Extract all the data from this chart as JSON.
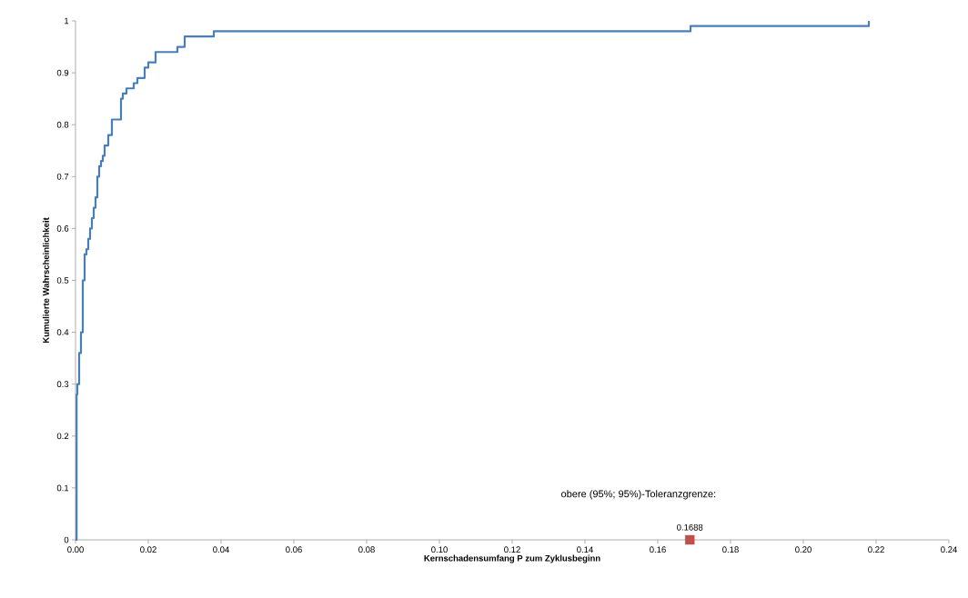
{
  "chart_data": {
    "type": "step",
    "xlabel": "Kernschadensumfang P zum Zyklusbeginn",
    "ylabel": "Kumulierte Wahrscheinlichkeit",
    "xlim": [
      0,
      0.24
    ],
    "ylim": [
      0,
      1
    ],
    "xticks": [
      {
        "value": 0,
        "label": "0.00"
      },
      {
        "value": 0.02,
        "label": "0.02"
      },
      {
        "value": 0.04,
        "label": "0.04"
      },
      {
        "value": 0.06,
        "label": "0.06"
      },
      {
        "value": 0.08,
        "label": "0.08"
      },
      {
        "value": 0.1,
        "label": "0.10"
      },
      {
        "value": 0.12,
        "label": "0.12"
      },
      {
        "value": 0.14,
        "label": "0.14"
      },
      {
        "value": 0.16,
        "label": "0.16"
      },
      {
        "value": 0.18,
        "label": "0.18"
      },
      {
        "value": 0.2,
        "label": "0.20"
      },
      {
        "value": 0.22,
        "label": "0.22"
      },
      {
        "value": 0.24,
        "label": "0.24"
      }
    ],
    "yticks": [
      0,
      0.1,
      0.2,
      0.3,
      0.4,
      0.5,
      0.6,
      0.7,
      0.8,
      0.9,
      1
    ],
    "series": [
      {
        "color": "#4a7ebb",
        "marker": "none",
        "x": [
          0,
          0.0003,
          0.0005,
          0.001,
          0.0015,
          0.002,
          0.0025,
          0.003,
          0.0035,
          0.004,
          0.0045,
          0.005,
          0.0055,
          0.006,
          0.0065,
          0.007,
          0.0075,
          0.008,
          0.009,
          0.01,
          0.0125,
          0.013,
          0.014,
          0.016,
          0.017,
          0.019,
          0.02,
          0.022,
          0.028,
          0.03,
          0.038,
          0.169,
          0.218
        ],
        "values": [
          0,
          0.28,
          0.3,
          0.36,
          0.4,
          0.5,
          0.55,
          0.56,
          0.58,
          0.6,
          0.62,
          0.64,
          0.66,
          0.7,
          0.72,
          0.73,
          0.74,
          0.76,
          0.78,
          0.81,
          0.85,
          0.86,
          0.87,
          0.88,
          0.89,
          0.91,
          0.92,
          0.94,
          0.95,
          0.97,
          0.98,
          0.99,
          1
        ]
      },
      {
        "type": "scatter",
        "color": "#c0504d",
        "marker": "square",
        "x": [
          0.1688
        ],
        "values": [
          0
        ]
      }
    ],
    "annotations": [
      "obere (95%; 95%)-Toleranzgrenze:",
      {
        "text": "0.1688",
        "x": 0.1688,
        "y": 0
      }
    ]
  }
}
